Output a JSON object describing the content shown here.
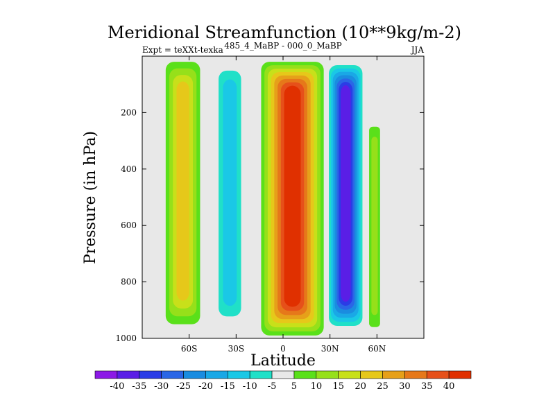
{
  "chart_data": {
    "type": "heatmap",
    "title": "Meridional Streamfunction (10**9kg/m-2)",
    "subtitle": "485_4_MaBP - 000_0_MaBP",
    "left_label": "Expt = teXXt-texka",
    "right_label": "JJA",
    "xlabel": "Latitude",
    "ylabel": "Pressure (in hPa)",
    "xlim": [
      -90,
      90
    ],
    "ylim": [
      1000,
      0
    ],
    "x_ticks": [
      {
        "value": -60,
        "label": "60S"
      },
      {
        "value": -30,
        "label": "30S"
      },
      {
        "value": 0,
        "label": "0"
      },
      {
        "value": 30,
        "label": "30N"
      },
      {
        "value": 60,
        "label": "60N"
      }
    ],
    "y_ticks": [
      {
        "value": 200,
        "label": "200"
      },
      {
        "value": 400,
        "label": "400"
      },
      {
        "value": 600,
        "label": "600"
      },
      {
        "value": 800,
        "label": "800"
      },
      {
        "value": 1000,
        "label": "1000"
      }
    ],
    "colorbar": {
      "levels": [
        -40,
        -35,
        -30,
        -25,
        -20,
        -15,
        -10,
        -5,
        5,
        10,
        15,
        20,
        25,
        30,
        35,
        40
      ],
      "labels": [
        "-40",
        "-35",
        "-30",
        "-25",
        "-20",
        "-15",
        "-10",
        "-5",
        "5",
        "10",
        "15",
        "20",
        "25",
        "30",
        "35",
        "40"
      ],
      "colors": [
        "#8c1ae6",
        "#5a1ee6",
        "#2a3ce6",
        "#2a66e6",
        "#1a8ce0",
        "#1aa8e6",
        "#1ac8e6",
        "#20e0c8",
        "#e8e8e8",
        "#5ae01a",
        "#96e01a",
        "#c8e01a",
        "#e6c81a",
        "#e6a01a",
        "#e6781a",
        "#e6501a",
        "#e03000"
      ]
    },
    "features": [
      {
        "name": "southern-high-latitude-positive-cell",
        "lat_range": [
          -75,
          -53
        ],
        "p_range": [
          20,
          950
        ],
        "peak": 20
      },
      {
        "name": "southern-midlatitude-negative-cell",
        "lat_range": [
          -44,
          -24
        ],
        "p_range": [
          20,
          960
        ],
        "peak": -15
      },
      {
        "name": "tropical-positive-cell",
        "lat_range": [
          -14,
          26
        ],
        "p_range": [
          20,
          990
        ],
        "peak": 40
      },
      {
        "name": "northern-subtropical-negative-cell",
        "lat_range": [
          28,
          52
        ],
        "p_range": [
          20,
          970
        ],
        "peak": -40
      },
      {
        "name": "northern-high-latitude-positive-cell",
        "lat_range": [
          55,
          62
        ],
        "p_range": [
          250,
          960
        ],
        "peak": 10
      }
    ]
  }
}
